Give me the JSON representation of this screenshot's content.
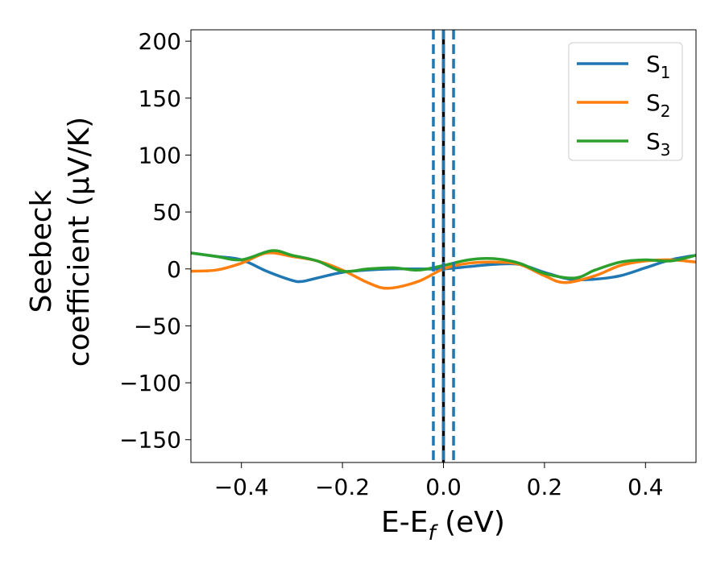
{
  "chart_data": {
    "type": "line",
    "xlabel": {
      "main": "E-E",
      "sub": "f",
      "tail": " (eV)"
    },
    "ylabel": {
      "line1": "Seebeck",
      "line2": "coefficient  (μV/K)"
    },
    "xlim": [
      -0.5,
      0.5
    ],
    "ylim": [
      -170,
      210
    ],
    "xticks": [
      -0.4,
      -0.2,
      0.0,
      0.2,
      0.4
    ],
    "xtick_labels": [
      "−0.4",
      "−0.2",
      "0.0",
      "0.2",
      "0.4"
    ],
    "yticks": [
      -150,
      -100,
      -50,
      0,
      50,
      100,
      150,
      200
    ],
    "ytick_labels": [
      "−150",
      "−100",
      "−50",
      "0",
      "50",
      "100",
      "150",
      "200"
    ],
    "grid": false,
    "legend_position": "top-right",
    "series": [
      {
        "name": "S",
        "sub": "1",
        "color": "#1f77b4",
        "x": [
          -0.5,
          -0.45,
          -0.4,
          -0.35,
          -0.3,
          -0.28,
          -0.25,
          -0.2,
          -0.15,
          -0.1,
          -0.05,
          0.0,
          0.05,
          0.1,
          0.15,
          0.2,
          0.25,
          0.3,
          0.35,
          0.4,
          0.45,
          0.5
        ],
        "y": [
          14,
          11,
          8,
          -2,
          -10,
          -11,
          -8,
          -3,
          -1,
          0,
          0,
          0,
          2,
          4,
          4,
          -3,
          -9,
          -9,
          -6,
          1,
          8,
          12
        ]
      },
      {
        "name": "S",
        "sub": "2",
        "color": "#ff7f0e",
        "x": [
          -0.5,
          -0.45,
          -0.4,
          -0.35,
          -0.3,
          -0.25,
          -0.2,
          -0.15,
          -0.11,
          -0.05,
          0.0,
          0.05,
          0.1,
          0.15,
          0.2,
          0.24,
          0.3,
          0.35,
          0.4,
          0.45,
          0.5
        ],
        "y": [
          -2,
          -1,
          5,
          14,
          11,
          7,
          -1,
          -12,
          -17,
          -11,
          0,
          5,
          6,
          4,
          -6,
          -12,
          -6,
          3,
          7,
          8,
          6
        ]
      },
      {
        "name": "S",
        "sub": "3",
        "color": "#2ca02c",
        "x": [
          -0.5,
          -0.45,
          -0.4,
          -0.34,
          -0.3,
          -0.25,
          -0.2,
          -0.15,
          -0.1,
          -0.05,
          0.0,
          0.05,
          0.1,
          0.15,
          0.2,
          0.26,
          0.3,
          0.35,
          0.4,
          0.45,
          0.5
        ],
        "y": [
          14,
          11,
          8,
          16,
          12,
          7,
          -2,
          0,
          1,
          -1,
          3,
          8,
          9,
          5,
          -4,
          -8,
          -1,
          6,
          8,
          7,
          12
        ]
      }
    ],
    "vlines": [
      {
        "x": 0.0,
        "color": "#000000",
        "style": "solid"
      },
      {
        "x": 0.0,
        "color": "#1f77b4",
        "style": "dashed"
      },
      {
        "x": -0.02,
        "color": "#1f77b4",
        "style": "dashed"
      },
      {
        "x": 0.02,
        "color": "#1f77b4",
        "style": "dashed"
      }
    ]
  }
}
